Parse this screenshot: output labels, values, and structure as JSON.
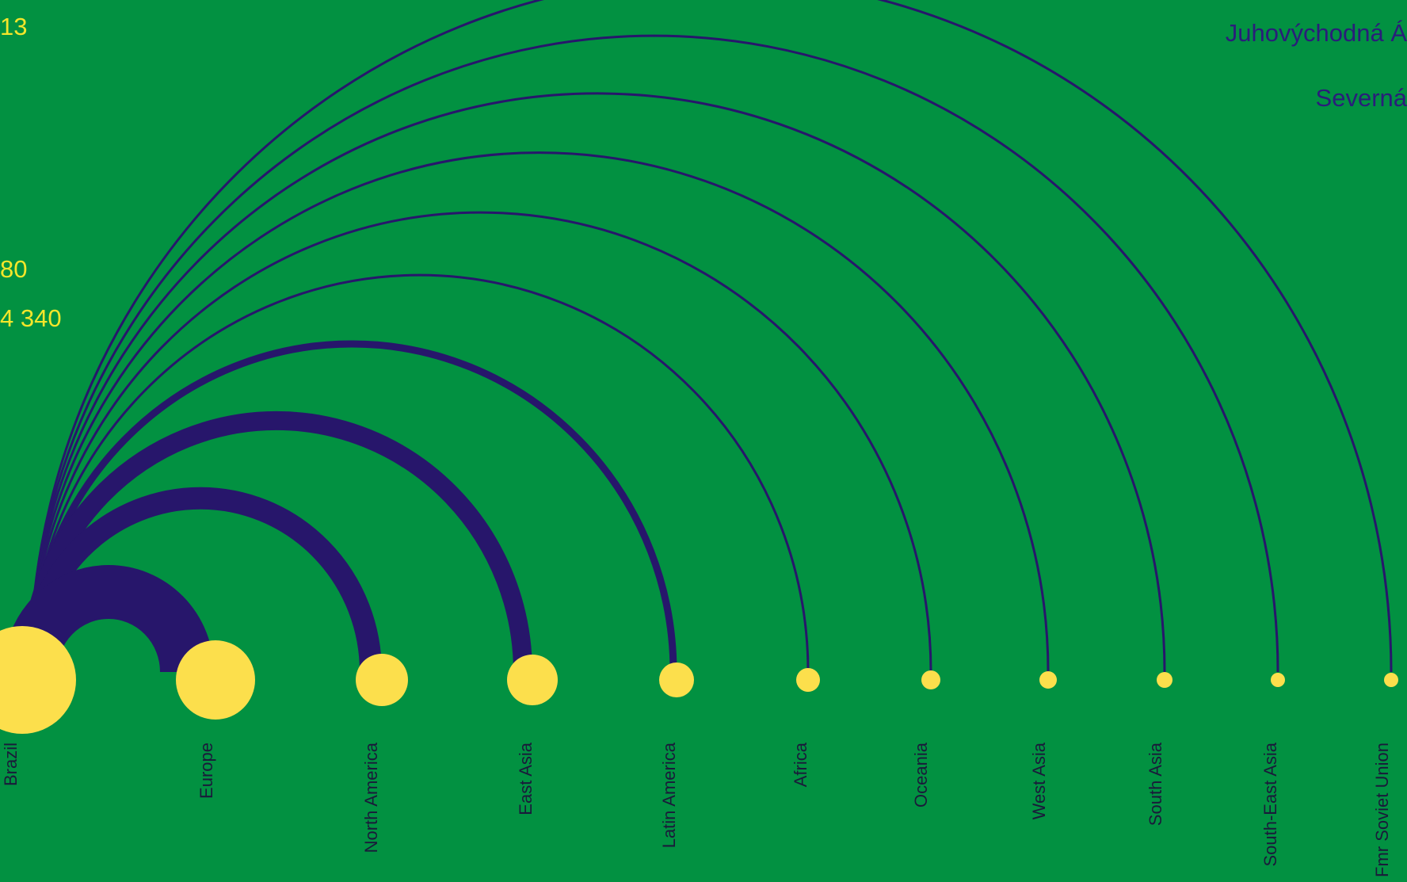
{
  "colors": {
    "background": "#029141",
    "arc": "#27166b",
    "node": "#fcdf4c",
    "label": "#1a1a3a",
    "left_text": "#f4e62a",
    "right_text": "#2a1d7a"
  },
  "left_fragments": [
    "13",
    "80",
    "4 340"
  ],
  "right_fragments": [
    "Juhovýchodná Á",
    "Severná"
  ],
  "source": {
    "name": "Brazil"
  },
  "targets": [
    {
      "name": "Europe",
      "flow_weight": 5
    },
    {
      "name": "North America",
      "flow_weight": 4
    },
    {
      "name": "East Asia",
      "flow_weight": 3.5
    },
    {
      "name": "Latin America",
      "flow_weight": 2
    },
    {
      "name": "Africa",
      "flow_weight": 1
    },
    {
      "name": "Oceania",
      "flow_weight": 0.8
    },
    {
      "name": "West Asia",
      "flow_weight": 0.8
    },
    {
      "name": "South Asia",
      "flow_weight": 0.8
    },
    {
      "name": "South-East Asia",
      "flow_weight": 0.8
    },
    {
      "name": "Fmr Soviet Union",
      "flow_weight": 0.8
    }
  ]
}
